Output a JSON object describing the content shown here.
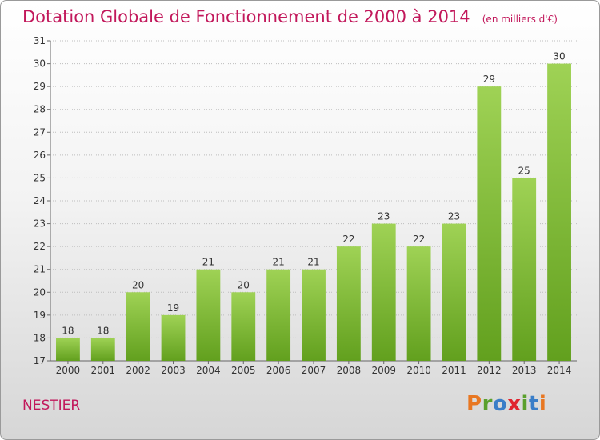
{
  "title": "Dotation Globale de Fonctionnement de 2000 à 2014",
  "unit": "(en milliers d'€)",
  "commune": "NESTIER",
  "logo": {
    "letters": [
      "P",
      "r",
      "o",
      "x",
      "i",
      "t",
      "i"
    ],
    "colors": [
      "#e87722",
      "#5aa02c",
      "#3a7ec8",
      "#e0242f",
      "#5aa02c",
      "#3a7ec8",
      "#e87722"
    ]
  },
  "colors": {
    "bar_top": "#9fd255",
    "bar_bottom": "#62a01e",
    "title": "#c2185b",
    "grid": "#bdbdbd"
  },
  "chart_data": {
    "type": "bar",
    "title": "Dotation Globale de Fonctionnement de 2000 à 2014",
    "ylabel": "",
    "xlabel": "",
    "categories": [
      "2000",
      "2001",
      "2002",
      "2003",
      "2004",
      "2005",
      "2006",
      "2007",
      "2008",
      "2009",
      "2010",
      "2011",
      "2012",
      "2013",
      "2014"
    ],
    "values": [
      18,
      18,
      20,
      19,
      21,
      20,
      21,
      21,
      22,
      23,
      22,
      23,
      29,
      25,
      30
    ],
    "ylim": [
      17,
      31
    ],
    "yticks": [
      17,
      18,
      19,
      20,
      21,
      22,
      23,
      24,
      25,
      26,
      27,
      28,
      29,
      30,
      31
    ],
    "grid": true
  }
}
